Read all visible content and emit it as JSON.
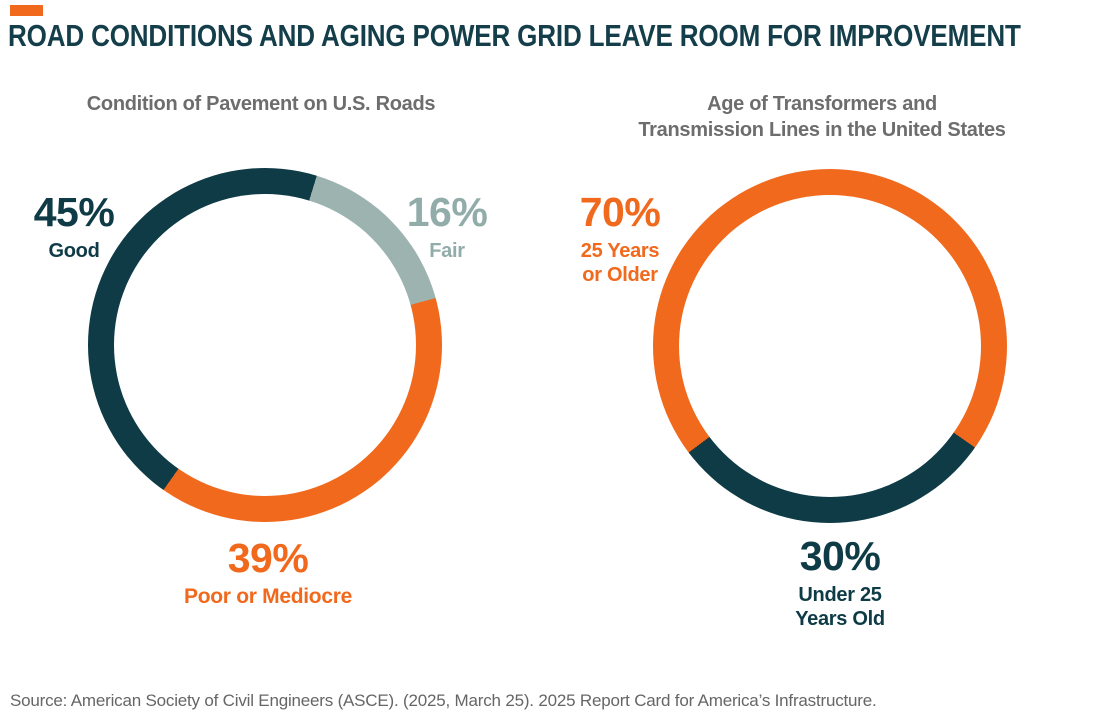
{
  "page": {
    "title": "ROAD CONDITIONS AND AGING POWER GRID LEAVE ROOM FOR IMPROVEMENT",
    "source": "Source: American Society of Civil Engineers (ASCE). (2025, March 25). 2025 Report Card for America’s Infrastructure.",
    "accent_color": "#F0691C",
    "title_color": "#143E4A"
  },
  "chart_data": [
    {
      "type": "pie",
      "variant": "donut",
      "title": "Condition of Pavement on U.S. Roads",
      "start_angle_deg": 17,
      "segments": [
        {
          "label": "Fair",
          "value": 16,
          "color": "#9CB3B0"
        },
        {
          "label": "Poor or Mediocre",
          "value": 39,
          "color": "#F0691C"
        },
        {
          "label": "Good",
          "value": 45,
          "color": "#0E3B46"
        }
      ],
      "callouts": [
        {
          "pct": "45%",
          "sub": "Good",
          "color": "#0E3B46",
          "position": "top-left"
        },
        {
          "pct": "16%",
          "sub": "Fair",
          "color": "#92ACA9",
          "position": "top-right"
        },
        {
          "pct": "39%",
          "sub": "Poor or Mediocre",
          "color": "#F0691C",
          "position": "bottom"
        }
      ]
    },
    {
      "type": "pie",
      "variant": "donut",
      "title": "Age of Transformers and\nTransmission Lines in the United States",
      "start_angle_deg": 125,
      "segments": [
        {
          "label": "Under 25 Years Old",
          "value": 30,
          "color": "#0E3B46"
        },
        {
          "label": "25 Years or Older",
          "value": 70,
          "color": "#F0691C"
        }
      ],
      "callouts": [
        {
          "pct": "70%",
          "sub": "25 Years\nor Older",
          "color": "#F0691C",
          "position": "top-left"
        },
        {
          "pct": "30%",
          "sub": "Under 25\nYears Old",
          "color": "#0E3B46",
          "position": "bottom"
        }
      ]
    }
  ]
}
